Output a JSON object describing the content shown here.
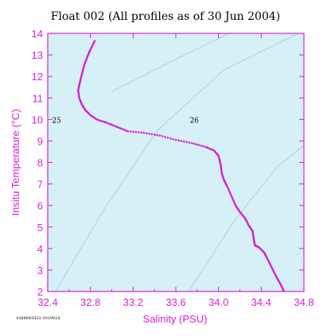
{
  "chart_data": {
    "type": "scatter",
    "title": "Float 002  (All profiles as of 30 Jun 2004)",
    "xlabel": "Salinity (PSU)",
    "ylabel": "Insitu Temperature (°C)",
    "xlim": [
      32.4,
      34.8
    ],
    "ylim": [
      2,
      14
    ],
    "xticks": [
      "32.4",
      "32.8",
      "33.2",
      "33.6",
      "34.0",
      "34.4",
      "34.8"
    ],
    "yticks": [
      "2",
      "3",
      "4",
      "5",
      "6",
      "7",
      "8",
      "9",
      "10",
      "11",
      "12",
      "13",
      "14"
    ],
    "grid": false,
    "isopycnal_labels": [
      {
        "text": "25",
        "x": 32.44,
        "y": 9.95
      },
      {
        "text": "26",
        "x": 33.73,
        "y": 9.95
      }
    ],
    "isopycnals": [
      {
        "points": [
          [
            32.47,
            2.0
          ],
          [
            32.95,
            6.0
          ],
          [
            33.43,
            9.5
          ],
          [
            34.05,
            12.3
          ],
          [
            34.75,
            14.0
          ]
        ]
      },
      {
        "points": [
          [
            33.72,
            2.0
          ],
          [
            34.15,
            5.3
          ],
          [
            34.55,
            7.8
          ],
          [
            34.8,
            8.8
          ]
        ]
      },
      {
        "points": [
          [
            33.0,
            11.3
          ],
          [
            33.6,
            12.8
          ],
          [
            34.1,
            14.0
          ]
        ]
      }
    ],
    "series": [
      {
        "color": "#d61fd6",
        "points": [
          [
            32.84,
            13.65
          ],
          [
            32.8,
            13.25
          ],
          [
            32.77,
            12.9
          ],
          [
            32.74,
            12.5
          ],
          [
            32.72,
            12.1
          ],
          [
            32.7,
            11.7
          ],
          [
            32.685,
            11.35
          ],
          [
            32.695,
            11.0
          ],
          [
            32.72,
            10.7
          ],
          [
            32.75,
            10.45
          ],
          [
            32.8,
            10.2
          ],
          [
            32.86,
            10.0
          ],
          [
            32.95,
            9.85
          ],
          [
            33.05,
            9.65
          ],
          [
            33.15,
            9.45
          ],
          [
            33.3,
            9.38
          ],
          [
            33.45,
            9.25
          ],
          [
            33.6,
            9.05
          ],
          [
            33.75,
            8.9
          ],
          [
            33.88,
            8.72
          ],
          [
            33.96,
            8.55
          ],
          [
            34.0,
            8.3
          ],
          [
            34.02,
            7.9
          ],
          [
            34.03,
            7.5
          ],
          [
            34.05,
            7.2
          ],
          [
            34.08,
            6.9
          ],
          [
            34.12,
            6.45
          ],
          [
            34.16,
            6.0
          ],
          [
            34.2,
            5.7
          ],
          [
            34.25,
            5.4
          ],
          [
            34.28,
            5.1
          ],
          [
            34.32,
            4.8
          ],
          [
            34.33,
            4.45
          ],
          [
            34.34,
            4.15
          ],
          [
            34.38,
            4.05
          ],
          [
            34.43,
            3.8
          ],
          [
            34.46,
            3.5
          ],
          [
            34.5,
            3.1
          ],
          [
            34.54,
            2.7
          ],
          [
            34.58,
            2.35
          ],
          [
            34.61,
            2.05
          ]
        ]
      }
    ]
  },
  "footnote": "1088645433.5919028",
  "colors": {
    "plot_bg": "#d6f0f8",
    "axis": "#d61fd6",
    "isopycnal": "#a8c8d8"
  }
}
